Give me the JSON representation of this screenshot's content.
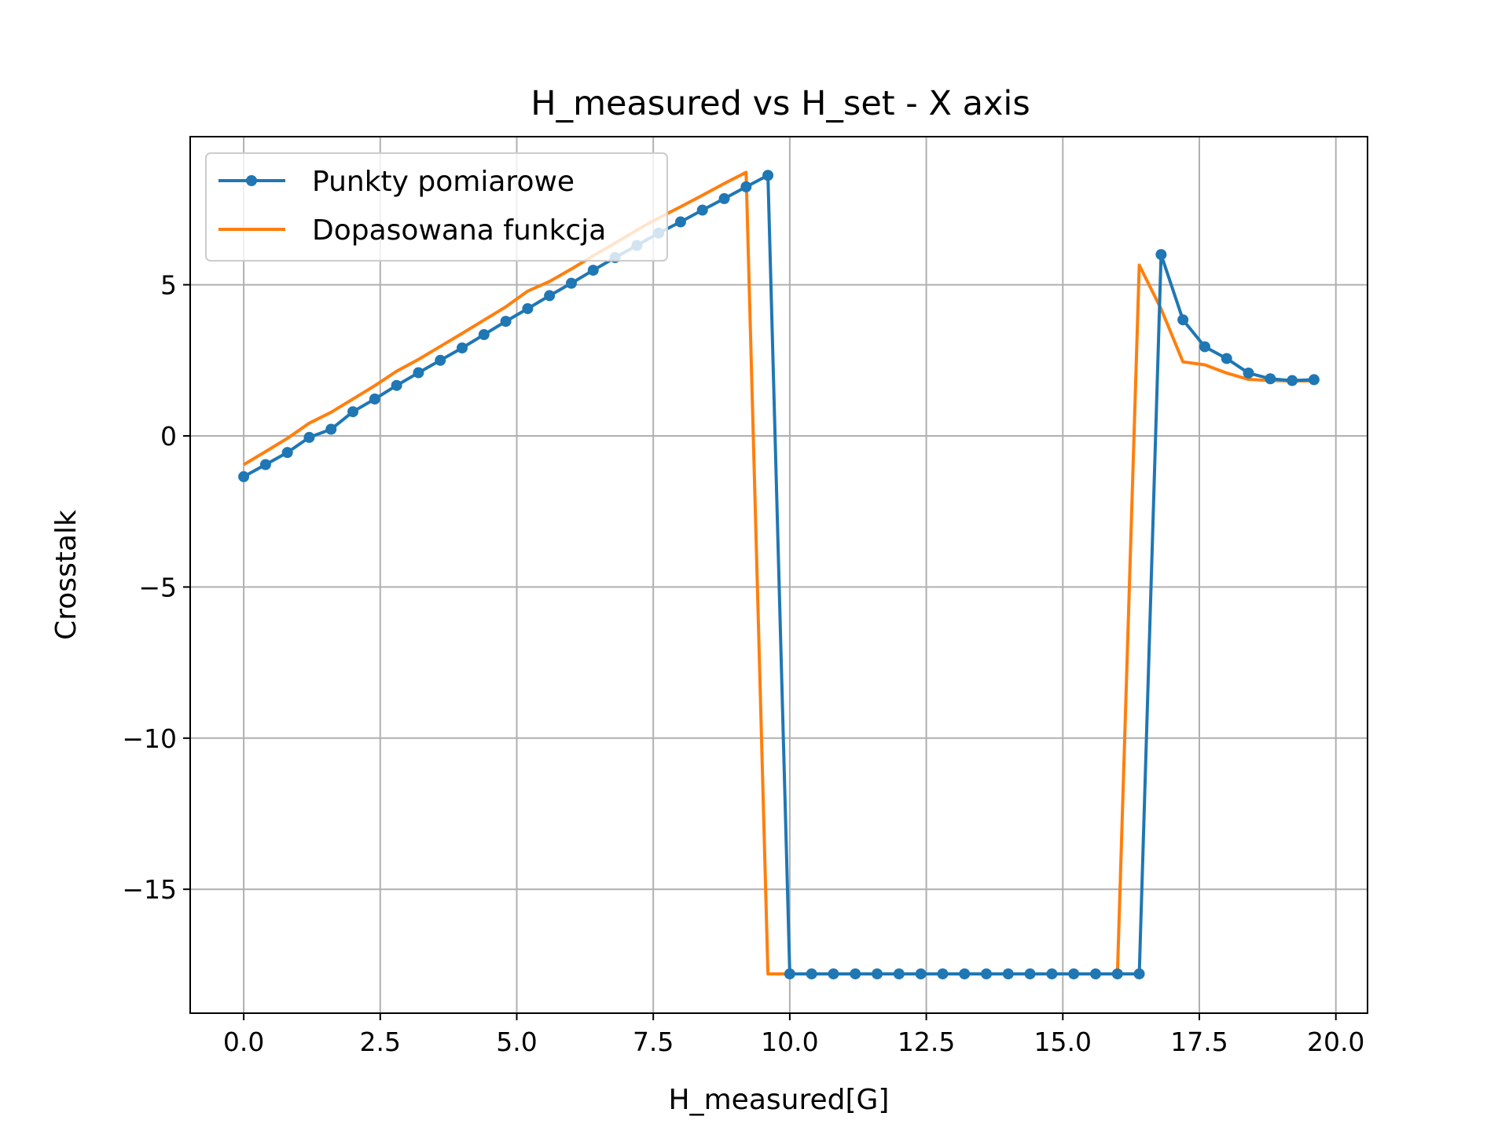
{
  "chart_data": {
    "type": "line",
    "title": "H_measured vs H_set - X axis",
    "xlabel": "H_measured[G]",
    "ylabel": "Crosstalk",
    "xlim": [
      -0.98,
      20.58
    ],
    "ylim": [
      -19.1,
      9.9
    ],
    "xticks": [
      0.0,
      2.5,
      5.0,
      7.5,
      10.0,
      12.5,
      15.0,
      17.5,
      20.0
    ],
    "xtick_labels": [
      "0.0",
      "2.5",
      "5.0",
      "7.5",
      "10.0",
      "12.5",
      "15.0",
      "17.5",
      "20.0"
    ],
    "yticks": [
      5,
      0,
      -5,
      -10,
      -15
    ],
    "ytick_labels": [
      "5",
      "0",
      "−5",
      "−10",
      "−15"
    ],
    "grid": true,
    "legend_position": "upper-left",
    "series": [
      {
        "name": "Punkty pomiarowe",
        "color": "#1f77b4",
        "marker": "circle",
        "x": [
          0.0,
          0.4,
          0.8,
          1.2,
          1.6,
          2.0,
          2.4,
          2.8,
          3.2,
          3.6,
          4.0,
          4.4,
          4.8,
          5.2,
          5.6,
          6.0,
          6.4,
          6.8,
          7.2,
          7.6,
          8.0,
          8.4,
          8.8,
          9.2,
          9.6,
          10.0,
          10.4,
          10.8,
          11.2,
          11.6,
          12.0,
          12.4,
          12.8,
          13.2,
          13.6,
          14.0,
          14.4,
          14.8,
          15.2,
          15.6,
          16.0,
          16.4,
          16.8,
          17.2,
          17.6,
          18.0,
          18.4,
          18.8,
          19.2,
          19.6
        ],
        "y": [
          -1.35,
          -0.95,
          -0.55,
          -0.05,
          0.22,
          0.8,
          1.22,
          1.67,
          2.09,
          2.5,
          2.91,
          3.35,
          3.79,
          4.21,
          4.64,
          5.05,
          5.48,
          5.9,
          6.3,
          6.71,
          7.08,
          7.47,
          7.85,
          8.24,
          8.62,
          -17.8,
          -17.8,
          -17.8,
          -17.8,
          -17.8,
          -17.8,
          -17.8,
          -17.8,
          -17.8,
          -17.8,
          -17.8,
          -17.8,
          -17.8,
          -17.8,
          -17.8,
          -17.8,
          -17.8,
          6.0,
          3.84,
          2.95,
          2.56,
          2.08,
          1.89,
          1.83,
          1.86
        ]
      },
      {
        "name": "Dopasowana funkcja",
        "color": "#ff7f0e",
        "marker": "none",
        "x": [
          0.0,
          0.4,
          0.8,
          1.2,
          1.6,
          2.0,
          2.4,
          2.8,
          3.2,
          3.6,
          4.0,
          4.4,
          4.8,
          5.2,
          5.6,
          6.0,
          6.4,
          6.8,
          7.2,
          7.6,
          8.0,
          8.4,
          8.8,
          9.2,
          9.6,
          10.0,
          10.4,
          10.8,
          11.2,
          11.6,
          12.0,
          12.4,
          12.8,
          13.2,
          13.6,
          14.0,
          14.4,
          14.8,
          15.2,
          15.6,
          16.0,
          16.4,
          16.8,
          17.2,
          17.6,
          18.0,
          18.4,
          18.8,
          19.2,
          19.6
        ],
        "y": [
          -0.95,
          -0.52,
          -0.08,
          0.42,
          0.78,
          1.22,
          1.66,
          2.14,
          2.53,
          2.96,
          3.39,
          3.83,
          4.27,
          4.79,
          5.11,
          5.52,
          5.96,
          6.38,
          6.81,
          7.21,
          7.58,
          7.96,
          8.35,
          8.72,
          -17.8,
          -17.8,
          -17.8,
          -17.8,
          -17.8,
          -17.8,
          -17.8,
          -17.8,
          -17.8,
          -17.8,
          -17.8,
          -17.8,
          -17.8,
          -17.8,
          -17.8,
          -17.8,
          -17.8,
          5.65,
          4.2,
          2.45,
          2.35,
          2.08,
          1.87,
          1.83,
          1.82,
          1.82
        ]
      }
    ]
  }
}
